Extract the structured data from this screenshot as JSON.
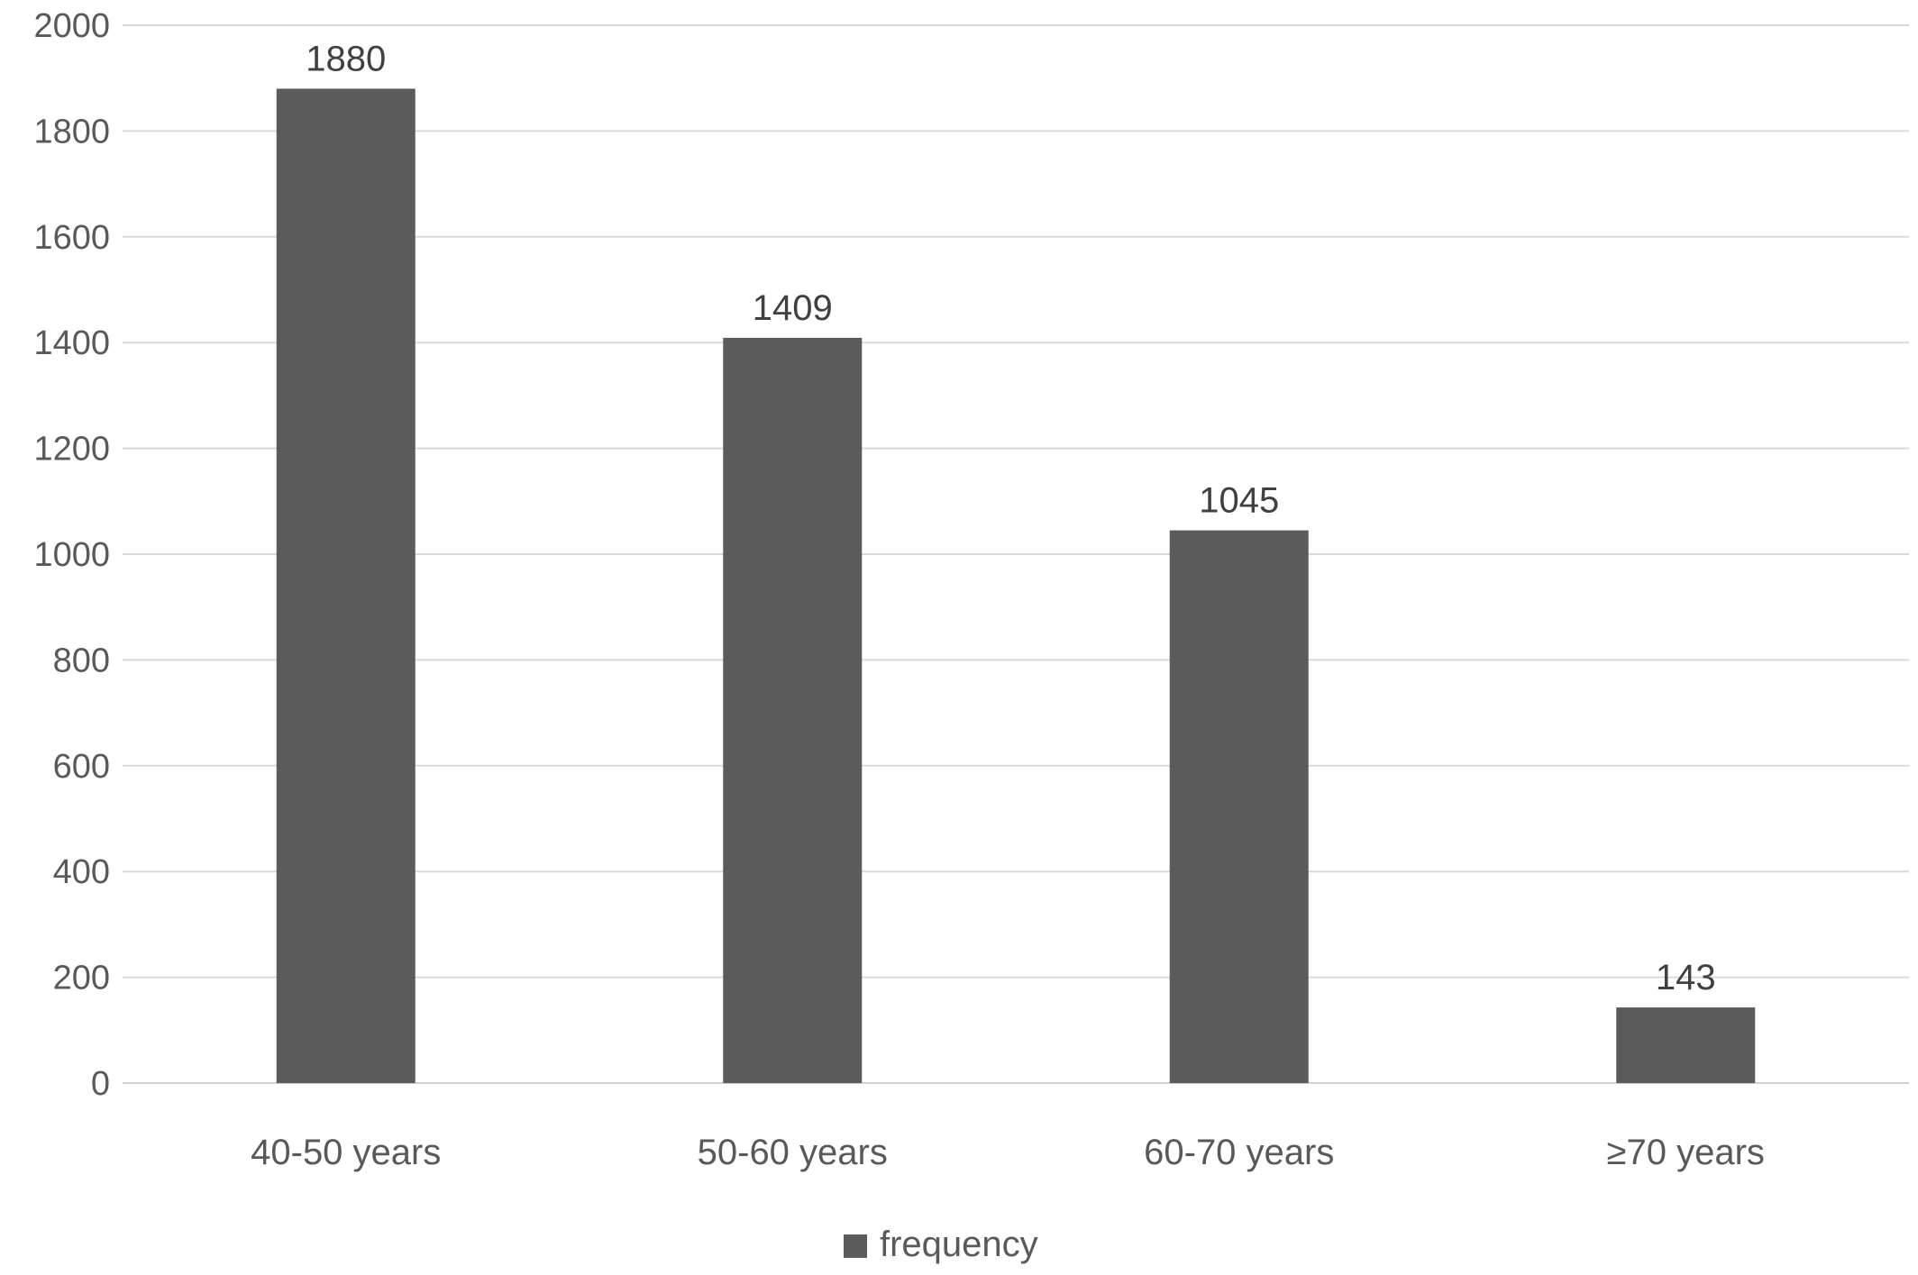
{
  "chart_data": {
    "type": "bar",
    "categories": [
      "40-50 years",
      "50-60 years",
      "60-70 years",
      "≥70 years"
    ],
    "series": [
      {
        "name": "frequency",
        "values": [
          1880,
          1409,
          1045,
          143
        ],
        "color": "#5b5b5b"
      }
    ],
    "data_labels": [
      "1880",
      "1409",
      "1045",
      "143"
    ],
    "ylim": [
      0,
      2000
    ],
    "yticks": [
      0,
      200,
      400,
      600,
      800,
      1000,
      1200,
      1400,
      1600,
      1800,
      2000
    ],
    "grid": true,
    "grid_color": "#d9d9d9",
    "legend": {
      "position": "bottom",
      "label": "frequency"
    }
  }
}
